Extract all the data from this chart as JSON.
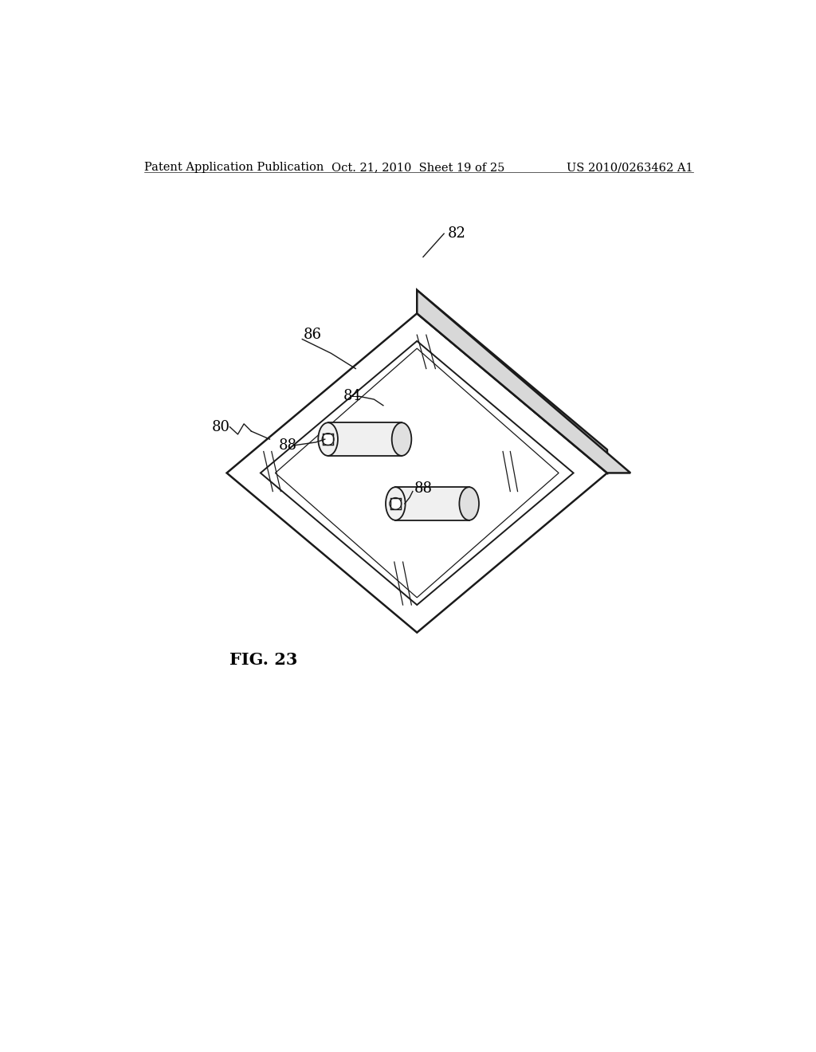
{
  "background_color": "#ffffff",
  "header_left": "Patent Application Publication",
  "header_center": "Oct. 21, 2010  Sheet 19 of 25",
  "header_right": "US 2010/0263462 A1",
  "header_fontsize": 10.5,
  "figure_label": "FIG. 23",
  "figure_label_fontsize": 15,
  "line_color": "#1a1a1a",
  "lw_outer": 1.8,
  "lw_inner": 1.4,
  "lw_thin": 0.9
}
